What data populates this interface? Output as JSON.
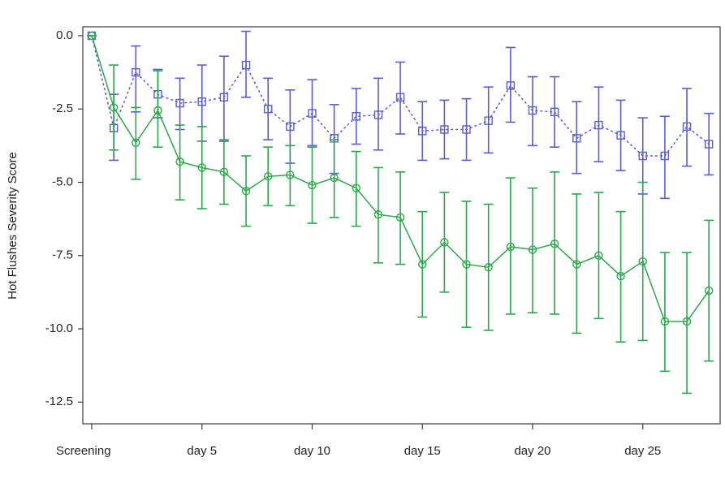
{
  "chart_data": {
    "type": "line",
    "title": "",
    "xlabel": "",
    "ylabel": "Hot Flushes Severity Score",
    "x": [
      "Screening",
      "day 1",
      "day 2",
      "day 3",
      "day 4",
      "day 5",
      "day 6",
      "day 7",
      "day 8",
      "day 9",
      "day 10",
      "day 11",
      "day 12",
      "day 13",
      "day 14",
      "day 15",
      "day 16",
      "day 17",
      "day 18",
      "day 19",
      "day 20",
      "day 21",
      "day 22",
      "day 23",
      "day 24",
      "day 25",
      "day 26",
      "day 27",
      "day 28"
    ],
    "x_tick_labels": [
      {
        "index": 0,
        "label": "Screening"
      },
      {
        "index": 5,
        "label": "day 5"
      },
      {
        "index": 10,
        "label": "day 10"
      },
      {
        "index": 15,
        "label": "day 15"
      },
      {
        "index": 20,
        "label": "day 20"
      },
      {
        "index": 25,
        "label": "day 25"
      }
    ],
    "y_ticks": [
      0.0,
      -2.5,
      -5.0,
      -7.5,
      -10.0,
      -12.5
    ],
    "y_tick_labels": [
      "0.0",
      "-2.5",
      "-5.0",
      "-7.5",
      "-10.0",
      "-12.5"
    ],
    "ylim": [
      -13.5,
      0.3
    ],
    "grid": false,
    "series": [
      {
        "color": "#5b5bd6",
        "marker": "square",
        "line_style": "dashed",
        "values": [
          0.0,
          -3.15,
          -1.25,
          -2.0,
          -2.3,
          -2.25,
          -2.1,
          -1.0,
          -2.5,
          -3.1,
          -2.65,
          -3.5,
          -2.75,
          -2.7,
          -2.1,
          -3.25,
          -3.2,
          -3.2,
          -2.9,
          -1.7,
          -2.55,
          -2.6,
          -3.5,
          -3.05,
          -3.4,
          -4.1,
          -4.1,
          -3.1,
          -3.7
        ],
        "error_low": [
          0.0,
          -4.25,
          -2.6,
          -2.8,
          -3.2,
          -3.6,
          -3.6,
          -2.1,
          -3.55,
          -4.35,
          -3.75,
          -4.7,
          -3.7,
          -3.9,
          -3.35,
          -4.25,
          -4.2,
          -4.25,
          -4.0,
          -2.95,
          -3.75,
          -3.8,
          -4.7,
          -4.3,
          -4.6,
          -5.4,
          -5.55,
          -4.45,
          -4.75
        ],
        "error_high": [
          0.0,
          -2.0,
          -0.35,
          -1.15,
          -1.45,
          -1.0,
          -0.7,
          0.15,
          -1.45,
          -1.85,
          -1.5,
          -2.35,
          -1.8,
          -1.45,
          -0.9,
          -2.25,
          -2.2,
          -2.15,
          -1.75,
          -0.4,
          -1.4,
          -1.4,
          -2.25,
          -1.75,
          -2.2,
          -2.8,
          -2.75,
          -1.8,
          -2.65
        ]
      },
      {
        "color": "#2aa84a",
        "marker": "circle",
        "line_style": "solid",
        "values": [
          0.0,
          -2.45,
          -3.65,
          -2.55,
          -4.3,
          -4.5,
          -4.65,
          -5.3,
          -4.8,
          -4.75,
          -5.1,
          -4.85,
          -5.2,
          -6.1,
          -6.2,
          -7.8,
          -7.05,
          -7.8,
          -7.9,
          -7.2,
          -7.3,
          -7.1,
          -7.8,
          -7.5,
          -8.2,
          -7.7,
          -9.75,
          -9.75,
          -8.7
        ],
        "error_low": [
          0.0,
          -3.9,
          -4.9,
          -3.8,
          -5.6,
          -5.9,
          -5.75,
          -6.5,
          -5.8,
          -5.8,
          -6.4,
          -6.2,
          -6.5,
          -7.75,
          -7.8,
          -9.6,
          -8.75,
          -9.95,
          -10.05,
          -9.5,
          -9.45,
          -9.5,
          -10.15,
          -9.65,
          -10.45,
          -10.4,
          -11.45,
          -12.2,
          -11.1
        ],
        "error_high": [
          0.0,
          -1.0,
          -2.45,
          -1.2,
          -3.05,
          -3.1,
          -3.55,
          -4.1,
          -3.8,
          -3.75,
          -3.8,
          -3.55,
          -3.95,
          -4.5,
          -4.65,
          -6.0,
          -5.35,
          -5.65,
          -5.75,
          -4.85,
          -5.2,
          -4.65,
          -5.4,
          -5.35,
          -6.0,
          -5.0,
          -7.4,
          -7.4,
          -6.3
        ]
      }
    ]
  }
}
